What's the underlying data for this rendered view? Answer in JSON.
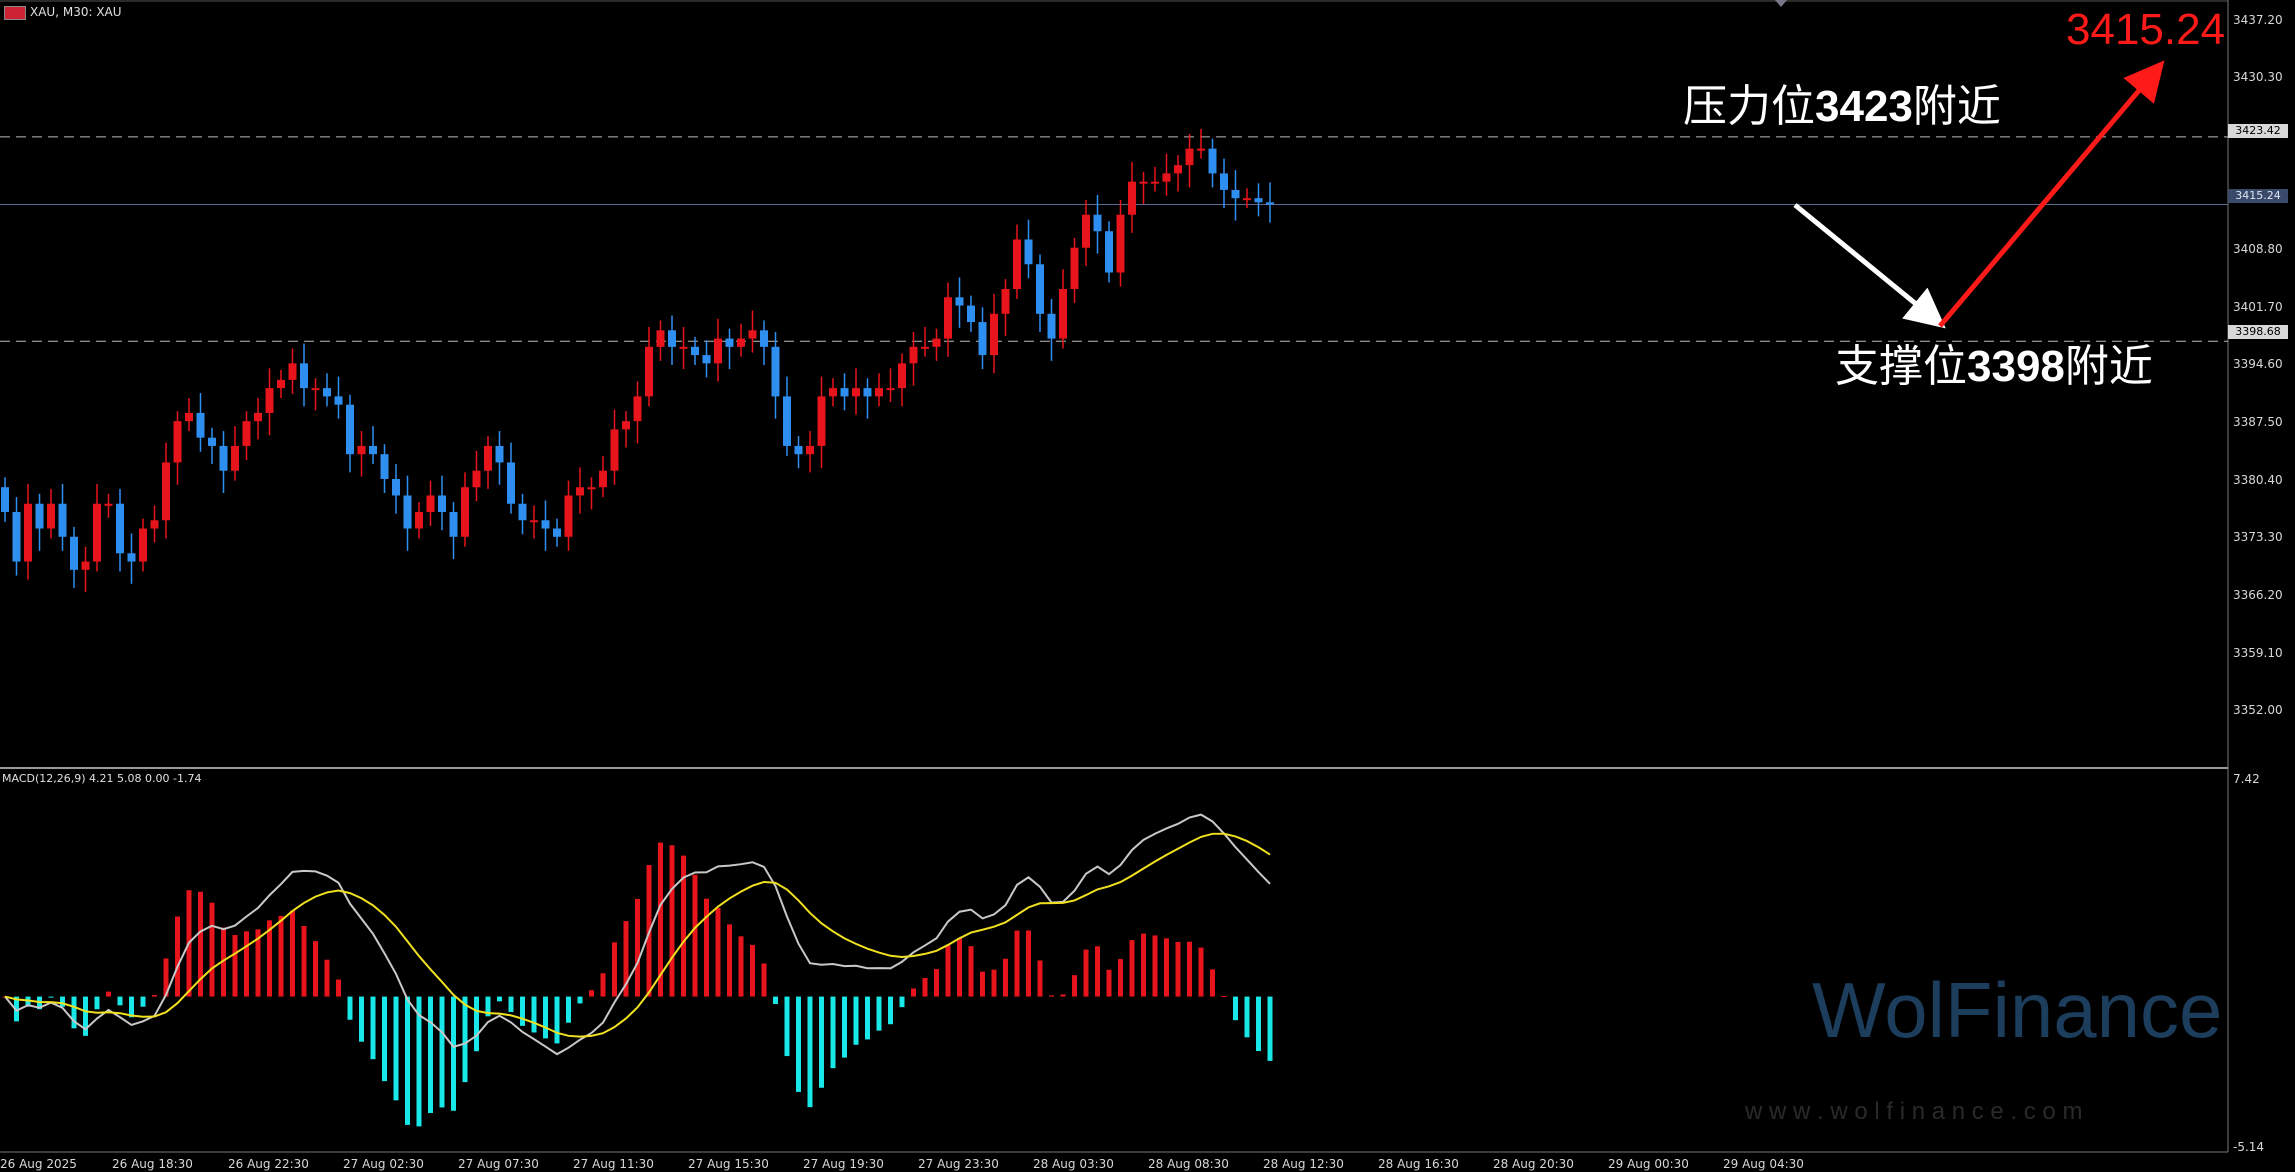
{
  "header": {
    "symbol_info": "XAU, M30:  XAU",
    "indicator_info": "MACD(12,26,9) 4.21 5.08 0.00 -1.74"
  },
  "annotations": {
    "resistance_prefix": "压力位",
    "resistance_value": "3423",
    "resistance_suffix": "附近",
    "support_prefix": "支撑位",
    "support_value": "3398",
    "support_suffix": "附近",
    "target_price": "3415.24"
  },
  "price_axis": {
    "ticks": [
      "3437.20",
      "3430.30",
      "3423.42",
      "3415.24",
      "3408.80",
      "3401.70",
      "3398.68",
      "3394.60",
      "3387.50",
      "3380.40",
      "3373.30",
      "3366.20",
      "3359.10",
      "3352.00"
    ],
    "resistance_label": "3423.42",
    "current_label": "3415.24",
    "support_label": "3398.68"
  },
  "macd_axis": {
    "top": "7.42",
    "bottom": "-5.14"
  },
  "time_axis": [
    "26 Aug 2025",
    "26 Aug 18:30",
    "26 Aug 22:30",
    "27 Aug 02:30",
    "27 Aug 07:30",
    "27 Aug 11:30",
    "27 Aug 15:30",
    "27 Aug 19:30",
    "27 Aug 23:30",
    "28 Aug 03:30",
    "28 Aug 08:30",
    "28 Aug 12:30",
    "28 Aug 16:30",
    "28 Aug 20:30",
    "29 Aug 00:30",
    "29 Aug 04:30"
  ],
  "watermark": {
    "brand": "WolFinance",
    "site": "w w w . w o l f i n a n c e . c o m"
  },
  "colors": {
    "bull": "#e8141c",
    "bear": "#2f8ff0",
    "macd_pos": "#e8141c",
    "macd_neg": "#19e8e8",
    "macd_line": "#c8c8c8",
    "signal_line": "#f0e020",
    "background": "#000000"
  },
  "chart_data": {
    "type": "candlestick",
    "symbol": "XAU",
    "timeframe": "M30",
    "ylim": [
      3347,
      3440
    ],
    "resistance": 3423.42,
    "support": 3398.68,
    "current": 3415.24,
    "closes": [
      3378,
      3372,
      3379,
      3376,
      3379,
      3375,
      3371,
      3372,
      3379,
      3379,
      3373,
      3372,
      3376,
      3377,
      3384,
      3389,
      3390,
      3387,
      3386,
      3383,
      3386,
      3389,
      3390,
      3393,
      3394,
      3396,
      3393,
      3393,
      3392,
      3391,
      3385,
      3386,
      3385,
      3382,
      3380,
      3376,
      3378,
      3380,
      3378,
      3375,
      3381,
      3383,
      3386,
      3384,
      3379,
      3377,
      3377,
      3376,
      3375,
      3380,
      3381,
      3381,
      3383,
      3388,
      3389,
      3392,
      3398,
      3400,
      3398,
      3398,
      3397,
      3396,
      3399,
      3398,
      3399,
      3400,
      3398,
      3392,
      3386,
      3385,
      3386,
      3392,
      3393,
      3392,
      3393,
      3392,
      3393,
      3393,
      3396,
      3398,
      3398,
      3399,
      3404,
      3403,
      3401,
      3397,
      3402,
      3405,
      3411,
      3408,
      3402,
      3399,
      3405,
      3410,
      3414,
      3412,
      3407,
      3414,
      3418,
      3418,
      3418,
      3419,
      3420,
      3422,
      3422,
      3419,
      3417,
      3416,
      3416,
      3415.5,
      3415.24
    ]
  }
}
